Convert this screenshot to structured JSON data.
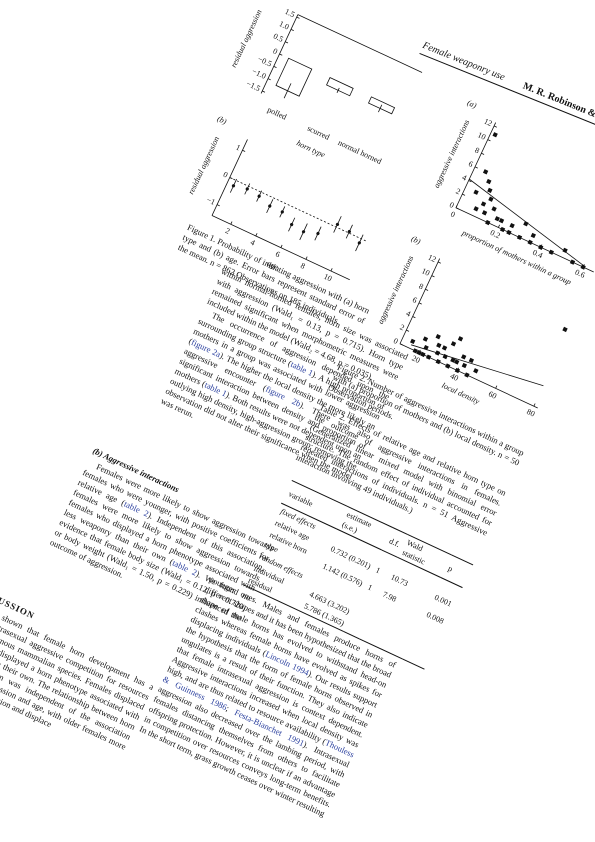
{
  "running_head": {
    "title": "Female weaponry use",
    "authors": "M. R. Robinson & R. Kruuk"
  },
  "figure1": {
    "panel_a": {
      "type": "bar",
      "label": "(a)",
      "ylabel": "residual aggression",
      "xlabel": "horn type",
      "categories": [
        "polled",
        "scurred",
        "normal horned"
      ],
      "values": [
        -1.1,
        -0.3,
        -0.25
      ],
      "errors": [
        0.3,
        0.1,
        0.15
      ],
      "ylim": [
        -1.6,
        1.6
      ],
      "yticks": [
        1.5,
        {
          "value": 1,
          "label": "1.0"
        },
        0.5,
        0,
        {
          "value": -0.5,
          "label": "−0.5"
        },
        {
          "value": -1,
          "label": "−1.0"
        },
        {
          "value": -1.5,
          "label": "−1.5"
        }
      ]
    },
    "panel_b": {
      "type": "errorbar",
      "label": "(b)",
      "ylabel": "residual aggression",
      "xlabel": "age",
      "x": [
        1,
        2,
        3,
        4,
        5,
        6,
        7,
        8,
        9,
        10,
        11
      ],
      "values": [
        -0.2,
        -0.1,
        -0.15,
        -0.3,
        -0.3,
        -0.55,
        -0.6,
        -0.45,
        0.1,
        0.05,
        -0.15
      ],
      "errors": [
        0.25,
        0.2,
        0.2,
        0.25,
        0.2,
        0.25,
        0.3,
        0.25,
        0.3,
        0.25,
        0.3
      ],
      "xlim": [
        0.5,
        11.5
      ],
      "ylim": [
        -1.4,
        1.4
      ],
      "xticks": [
        2,
        4,
        6,
        8,
        10
      ],
      "yticks": [
        1,
        0,
        {
          "value": -1,
          "label": "−1"
        }
      ]
    },
    "caption": "Figure 1. Probability of initiating aggression with (a) horn type and (b) age. Error bars represent standard error of the mean. n = 862 Observations on 185 individuals."
  },
  "figure2": {
    "panel_a": {
      "type": "scatter",
      "label": "(a)",
      "ylabel": "aggressive interactions",
      "xlabel": "proportion of mothers within a group",
      "x": [
        0.02,
        0.05,
        0.08,
        0.1,
        0.12,
        0.15,
        0.05,
        0.1,
        0.18,
        0.2,
        0.22,
        0.25,
        0.3,
        0.35,
        0.4,
        0.45,
        0.5,
        0.55,
        0.6,
        0.3,
        0.15,
        0.25,
        0.08,
        0.12,
        0.35
      ],
      "values": [
        11,
        6,
        5,
        4,
        3,
        2,
        3,
        2,
        1,
        1,
        0,
        1,
        0,
        1,
        0,
        0,
        1,
        0,
        0,
        2,
        0,
        0,
        1,
        1,
        0
      ],
      "fit": {
        "x": [
          0,
          0.6
        ],
        "y": [
          4.2,
          0.2
        ]
      },
      "xlim": [
        0,
        0.65
      ],
      "ylim": [
        0,
        12.5
      ],
      "xticks": [
        0,
        0.2,
        0.4,
        0.6
      ],
      "yticks": [
        0,
        2,
        4,
        6,
        8,
        10,
        12
      ]
    },
    "panel_b": {
      "type": "scatter",
      "label": "(b)",
      "ylabel": "aggressive interactions",
      "xlabel": "local density",
      "x": [
        15,
        18,
        20,
        22,
        25,
        25,
        28,
        30,
        30,
        32,
        35,
        35,
        38,
        40,
        40,
        42,
        45,
        48,
        20,
        22,
        27,
        33,
        36,
        44,
        78
      ],
      "values": [
        1,
        0,
        2,
        1,
        3,
        0,
        1,
        2,
        0,
        1,
        0,
        4,
        1,
        0,
        2,
        1,
        0,
        1,
        0,
        0,
        2,
        3,
        1,
        2,
        11
      ],
      "fit": {
        "x": [
          15,
          80
        ],
        "y": [
          0.5,
          3
        ]
      },
      "xlim": [
        10,
        82
      ],
      "ylim": [
        0,
        12.5
      ],
      "xticks": [
        20,
        40,
        60,
        80
      ],
      "yticks": [
        0,
        2,
        4,
        6,
        8,
        10,
        12
      ]
    },
    "caption": "Figure 2. Number of aggressive interactions within a group with (a) proportion of mothers and (b) local density. n = 50 Observation periods."
  },
  "left_text": {
    "para1": [
      "within normal-horned females, horn size was associated with aggression (Wald₁ = 0.13, p = 0.715). Horn type remained significant when morphometric measures were included within the model (Wald₂ = 4.68, p = 0.035)."
    ],
    "para2": [
      "The occurrence of aggression depended upon the surrounding group structure (",
      {
        "link": "table 1"
      },
      "). A high proportion of mothers in a group was associated with lower aggression (",
      {
        "link": "figure 2a"
      },
      "). The higher the local density the more likely an aggressive encounter (",
      {
        "link": "figure 2b"
      },
      "). There was also significant interaction between density and proportion of mothers (",
      {
        "link": "table 1"
      },
      "). Both results were not dependent upon an outlying high density, high-aggression group; removing the observation did not alter their significance when the model was rerun."
    ],
    "heading_b": "(b) Aggressive interactions",
    "para3": [
      "Females were more likely to show aggression towards females who were younger, with positive coefficients for relative age (",
      {
        "link": "table 2"
      },
      "). Independent of this association, females were more likely to show aggression towards females who displayed a horn phenotype associated with less weaponry than their own (",
      {
        "link": "table 2"
      },
      "). We found no evidence that female body size (Wald₁ = 0.12, p = 0.720) or body weight (Wald₁ = 1.50, p = 0.229) influenced the outcome of aggression."
    ],
    "heading_discussion": "4. DISCUSSION",
    "para4": [
      "We have shown that female horn development has a function in intrasexual aggressive competition for resources within a polygynous mammalian species. Females displaced individuals who displayed a horn phenotype associated with less weaponry than their own. The relationship between horn type and aggression was independent of the association between female aggression and age, with older females more likely to initiate aggression and displace"
    ]
  },
  "table2": {
    "caption": "Table 2. Effects of relative age and relative horn type on the outcome of aggressive interactions in females. (Generalized linear mixed model with binomial error structure. The random effect of individual accounted for repeated interactions of individuals. n = 51 Aggressive interaction involving 49 individuals.)",
    "columns": [
      "variable",
      "estimate (s.e.)",
      "d.f.",
      "Wald statistic",
      "p"
    ],
    "sections": [
      {
        "title": "fixed effects",
        "rows": [
          [
            "relative age",
            "0.732 (0.201)",
            "1",
            "10.73",
            "0.001"
          ],
          [
            "relative horn type",
            "1.142 (0.576)",
            "1",
            "7.98",
            "0.008"
          ]
        ]
      },
      {
        "title": "random effects",
        "rows": [
          [
            "individual",
            "4.663 (3.202)"
          ],
          [
            "residual",
            "5.786 (1.365)"
          ]
        ]
      }
    ]
  },
  "right_text": {
    "para1": [
      "younger ones. Males and females produce horns of different shapes and it has been hypothesized that the broad shape of male horns has evolved to withstand head-on clashes whereas female horns have evolved as spikes for displacing individuals (",
      {
        "link": "Lincoln 1994"
      },
      "). Our results support the hypothesis that the form of female horns observed in ungulates is a result of their function. They also indicate that female intrasexual aggression is context dependent. Aggressive interactions increased when local density was high, and are thus related to resource availability (",
      {
        "link": "Thouless & Guinness 1986"
      },
      "; ",
      {
        "link": "Festa-Bianchet 1991"
      },
      "). Intrasexual aggression also decreased over the lambing period, with females distancing themselves from others to facilitate offspring protection. However, it is unclear if an advantage in competition over resources conveys long-term benefits. In the short term, grass growth ceases over winter resulting"
    ]
  }
}
